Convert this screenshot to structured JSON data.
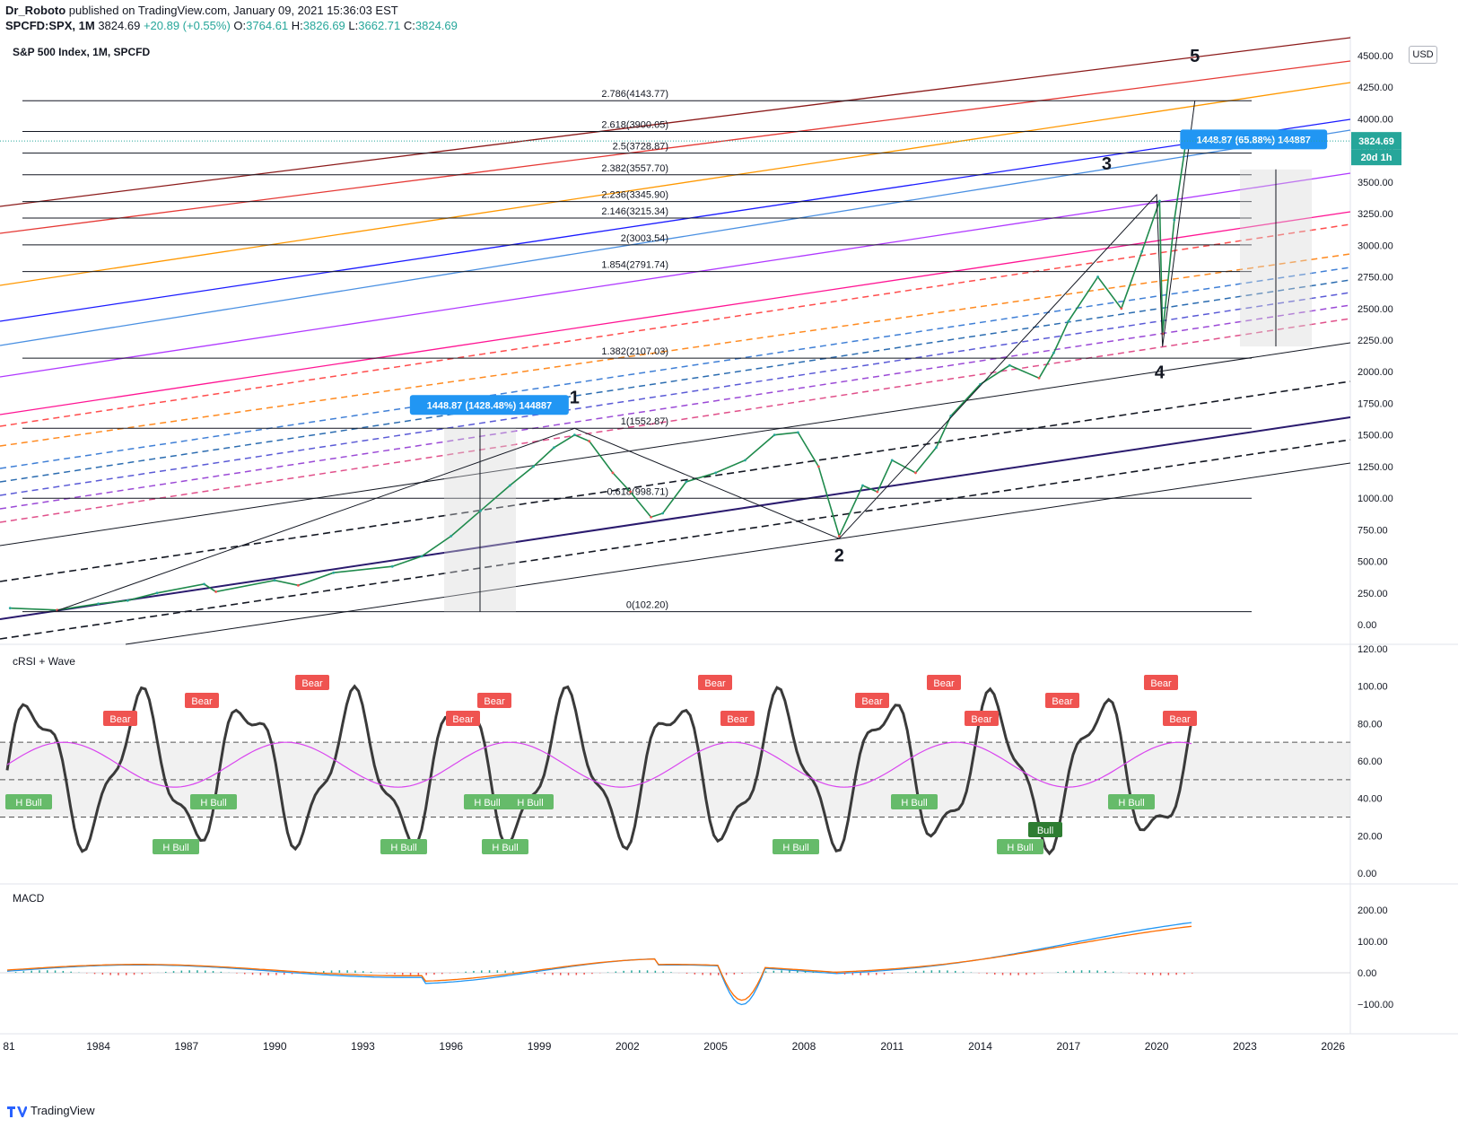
{
  "header": {
    "author": "Dr_Roboto",
    "published": "published on TradingView.com, January 09, 2021 15:36:03 EST",
    "symbol": "SPCFD:SPX, 1M",
    "last": "3824.69",
    "change": "+20.89 (+0.55%)",
    "o_label": "O:",
    "o": "3764.61",
    "h_label": "H:",
    "h": "3826.69",
    "l_label": "L:",
    "l": "3662.71",
    "c_label": "C:",
    "c": "3824.69"
  },
  "footer": {
    "brand": "TradingView"
  },
  "colors": {
    "up": "#26a69a",
    "down": "#ef5350",
    "label_blue": "#2196f3",
    "price_tag": "#26a69a"
  },
  "chart_data": [
    {
      "type": "line",
      "title": "S&P 500 Index, 1M, SPCFD",
      "currency": "USD",
      "x_ticks": [
        "81",
        "1984",
        "1987",
        "1990",
        "1993",
        "1996",
        "1999",
        "2002",
        "2005",
        "2008",
        "2011",
        "2014",
        "2017",
        "2020",
        "2023",
        "2026"
      ],
      "y_ticks": [
        "4500.00",
        "4250.00",
        "4000.00",
        "3750.00",
        "3500.00",
        "3250.00",
        "3000.00",
        "2750.00",
        "2500.00",
        "2250.00",
        "2000.00",
        "1750.00",
        "1500.00",
        "1250.00",
        "1000.00",
        "750.00",
        "500.00",
        "250.00",
        "0.00"
      ],
      "ylim": [
        0,
        4500
      ],
      "last_price_label": "3824.69",
      "countdown_label": "20d 1h",
      "series": [
        {
          "name": "",
          "x": [
            1981,
            1982.6,
            1984,
            1985,
            1986,
            1987.6,
            1988,
            1990,
            1990.8,
            1992,
            1994,
            1995,
            1996,
            1997,
            1998,
            1998.8,
            1999.5,
            2000.2,
            2000.7,
            2001.5,
            2002.1,
            2002.8,
            2003.2,
            2004,
            2005,
            2006,
            2007,
            2007.8,
            2008.5,
            2009.2,
            2010,
            2010.5,
            2011,
            2011.8,
            2012.5,
            2013,
            2014,
            2015,
            2016,
            2016.5,
            2017,
            2018,
            2018.8,
            2019.5,
            2020.1,
            2020.2,
            2020.6,
            2021
          ],
          "values": [
            130,
            115,
            165,
            190,
            250,
            320,
            260,
            350,
            310,
            410,
            460,
            540,
            700,
            900,
            1100,
            1250,
            1400,
            1500,
            1450,
            1200,
            1050,
            850,
            880,
            1130,
            1200,
            1300,
            1500,
            1520,
            1250,
            700,
            1100,
            1050,
            1300,
            1200,
            1400,
            1650,
            1900,
            2050,
            1950,
            2150,
            2400,
            2750,
            2500,
            2950,
            3350,
            2300,
            3200,
            3824.69
          ]
        }
      ],
      "fib_levels": [
        {
          "label": "2.786(4143.77)",
          "value": 4143.77
        },
        {
          "label": "2.618(3900.05)",
          "value": 3900.05
        },
        {
          "label": "2.5(3728.87)",
          "value": 3728.87
        },
        {
          "label": "2.382(3557.70)",
          "value": 3557.7
        },
        {
          "label": "2.236(3345.90)",
          "value": 3345.9
        },
        {
          "label": "2.146(3215.34)",
          "value": 3215.34
        },
        {
          "label": "2(3003.54)",
          "value": 3003.54
        },
        {
          "label": "1.854(2791.74)",
          "value": 2791.74
        },
        {
          "label": "1.382(2107.03)",
          "value": 2107.03
        },
        {
          "label": "1(1552.87)",
          "value": 1552.87
        },
        {
          "label": "0.618(998.71)",
          "value": 998.71
        },
        {
          "label": "0(102.20)",
          "value": 102.2
        }
      ],
      "wave_labels": [
        {
          "label": "1",
          "x": 2000.2,
          "value": 1750
        },
        {
          "label": "2",
          "x": 2009.2,
          "value": 500
        },
        {
          "label": "3",
          "x": 2018.3,
          "value": 3600
        },
        {
          "label": "4",
          "x": 2020.1,
          "value": 1950
        },
        {
          "label": "5",
          "x": 2021.3,
          "value": 4450
        }
      ],
      "measure_labels": [
        {
          "text": "1448.87 (1428.48%) 144887",
          "x": 1997.3,
          "value": 1730
        },
        {
          "text": "1448.87 (65.88%) 144887",
          "x": 2023.3,
          "value": 3830
        }
      ]
    },
    {
      "type": "line",
      "title": "cRSI + Wave",
      "y_ticks": [
        "120.00",
        "100.00",
        "80.00",
        "60.00",
        "40.00",
        "20.00",
        "0.00"
      ],
      "ylim": [
        0,
        120
      ],
      "bands": [
        70,
        50,
        30
      ],
      "markers": [
        {
          "text": "Bear",
          "kind": "bear"
        },
        {
          "text": "Bear",
          "kind": "bear"
        },
        {
          "text": "Bear",
          "kind": "bear"
        },
        {
          "text": "Bear",
          "kind": "bear"
        },
        {
          "text": "Bear",
          "kind": "bear"
        },
        {
          "text": "Bear",
          "kind": "bear"
        },
        {
          "text": "Bear",
          "kind": "bear"
        },
        {
          "text": "Bear",
          "kind": "bear"
        },
        {
          "text": "Bear",
          "kind": "bear"
        },
        {
          "text": "Bear",
          "kind": "bear"
        },
        {
          "text": "Bear",
          "kind": "bear"
        },
        {
          "text": "Bear",
          "kind": "bear"
        },
        {
          "text": "Bear",
          "kind": "bear"
        },
        {
          "text": "H Bull",
          "kind": "hbull"
        },
        {
          "text": "H Bull",
          "kind": "hbull"
        },
        {
          "text": "H Bull",
          "kind": "hbull"
        },
        {
          "text": "H Bull",
          "kind": "hbull"
        },
        {
          "text": "H Bull",
          "kind": "hbull"
        },
        {
          "text": "H Bull",
          "kind": "hbull"
        },
        {
          "text": "H Bull",
          "kind": "hbull"
        },
        {
          "text": "H Bull",
          "kind": "hbull"
        },
        {
          "text": "H Bull",
          "kind": "hbull"
        },
        {
          "text": "H Bull",
          "kind": "hbull"
        },
        {
          "text": "H Bull",
          "kind": "hbull"
        },
        {
          "text": "Bull",
          "kind": "bull"
        }
      ]
    },
    {
      "type": "line",
      "title": "MACD",
      "y_ticks": [
        "200.00",
        "100.00",
        "0.00",
        "−100.00"
      ],
      "ylim": [
        -150,
        250
      ]
    }
  ]
}
